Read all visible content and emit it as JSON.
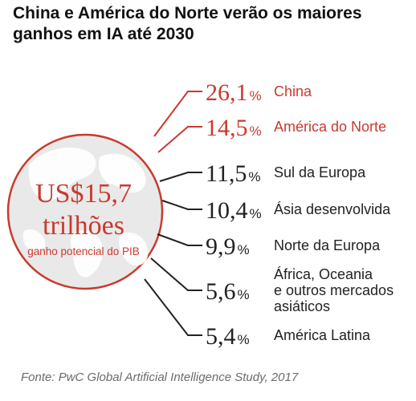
{
  "title": "China e América do Norte verão os maiores ganhos em IA até 2030",
  "total": {
    "value_label": "US$15,7",
    "unit_label": "trilhões",
    "caption": "ganho potencial do PIB"
  },
  "source": "Fonte: PwC Global Artificial Intelligence Study, 2017",
  "colors": {
    "accent": "#c93a2e",
    "dark": "#222222",
    "circle_fill": "#e9e9e9",
    "continents": "#ffffff"
  },
  "chart_data": {
    "type": "table",
    "title": "China e América do Norte verão os maiores ganhos em IA até 2030",
    "unit": "%",
    "rows": [
      {
        "value": 26.1,
        "value_label": "26,1",
        "unit": "%",
        "label_lines": [
          "China"
        ],
        "highlight": true
      },
      {
        "value": 14.5,
        "value_label": "14,5",
        "unit": "%",
        "label_lines": [
          "América do Norte"
        ],
        "highlight": true
      },
      {
        "value": 11.5,
        "value_label": "11,5",
        "unit": "%",
        "label_lines": [
          "Sul da Europa"
        ],
        "highlight": false
      },
      {
        "value": 10.4,
        "value_label": "10,4",
        "unit": "%",
        "label_lines": [
          "Ásia desenvolvida"
        ],
        "highlight": false
      },
      {
        "value": 9.9,
        "value_label": "9,9",
        "unit": "%",
        "label_lines": [
          "Norte da Europa"
        ],
        "highlight": false
      },
      {
        "value": 5.6,
        "value_label": "5,6",
        "unit": "%",
        "label_lines": [
          "África, Oceania",
          "e outros mercados",
          "asiáticos"
        ],
        "highlight": false
      },
      {
        "value": 5.4,
        "value_label": "5,4",
        "unit": "%",
        "label_lines": [
          "América Latina"
        ],
        "highlight": false
      }
    ]
  }
}
